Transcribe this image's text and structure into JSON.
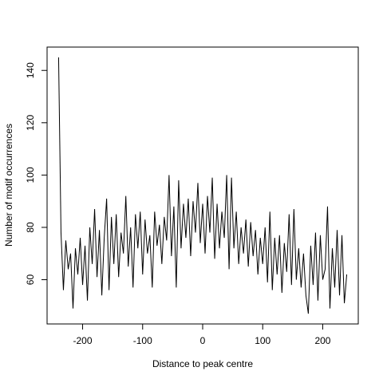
{
  "chart_data": {
    "type": "line",
    "x_label": "Distance to peak centre",
    "y_label": "Number of motif occurrences",
    "color": "#000000",
    "xlim": [
      -259.2,
      259.2
    ],
    "ylim": [
      43.08,
      148.92
    ],
    "xticks": [
      -200,
      -100,
      0,
      100,
      200
    ],
    "yticks": [
      60,
      80,
      100,
      120,
      140
    ],
    "x": [
      -240,
      -236,
      -232,
      -228,
      -224,
      -220,
      -216,
      -212,
      -208,
      -204,
      -200,
      -196,
      -192,
      -188,
      -184,
      -180,
      -176,
      -172,
      -168,
      -164,
      -160,
      -156,
      -152,
      -148,
      -144,
      -140,
      -136,
      -132,
      -128,
      -124,
      -120,
      -116,
      -112,
      -108,
      -104,
      -100,
      -96,
      -92,
      -88,
      -84,
      -80,
      -76,
      -72,
      -68,
      -64,
      -60,
      -56,
      -52,
      -48,
      -44,
      -40,
      -36,
      -32,
      -28,
      -24,
      -20,
      -16,
      -12,
      -8,
      -4,
      0,
      4,
      8,
      12,
      16,
      20,
      24,
      28,
      32,
      36,
      40,
      44,
      48,
      52,
      56,
      60,
      64,
      68,
      72,
      76,
      80,
      84,
      88,
      92,
      96,
      100,
      104,
      108,
      112,
      116,
      120,
      124,
      128,
      132,
      136,
      140,
      144,
      148,
      152,
      156,
      160,
      164,
      168,
      172,
      176,
      180,
      184,
      188,
      192,
      196,
      200,
      204,
      208,
      212,
      216,
      220,
      224,
      228,
      232,
      236,
      240
    ],
    "values": [
      145,
      78,
      56,
      75,
      64,
      70,
      49,
      72,
      62,
      76,
      58,
      73,
      52,
      80,
      66,
      87,
      61,
      79,
      54,
      76,
      91,
      56,
      84,
      66,
      85,
      61,
      78,
      70,
      92,
      65,
      80,
      57,
      85,
      72,
      86,
      62,
      83,
      70,
      77,
      57,
      86,
      73,
      81,
      66,
      84,
      75,
      100,
      69,
      88,
      57,
      98,
      72,
      89,
      76,
      91,
      69,
      90,
      78,
      97,
      74,
      89,
      70,
      92,
      78,
      99,
      68,
      89,
      72,
      86,
      76,
      100,
      64,
      99,
      72,
      86,
      66,
      80,
      70,
      83,
      65,
      82,
      69,
      79,
      62,
      76,
      66,
      80,
      59,
      86,
      56,
      76,
      62,
      77,
      55,
      74,
      63,
      85,
      58,
      87,
      60,
      72,
      57,
      70,
      54,
      47,
      73,
      58,
      78,
      52,
      77,
      60,
      64,
      88,
      49,
      72,
      57,
      79,
      54,
      77,
      51,
      62
    ]
  }
}
